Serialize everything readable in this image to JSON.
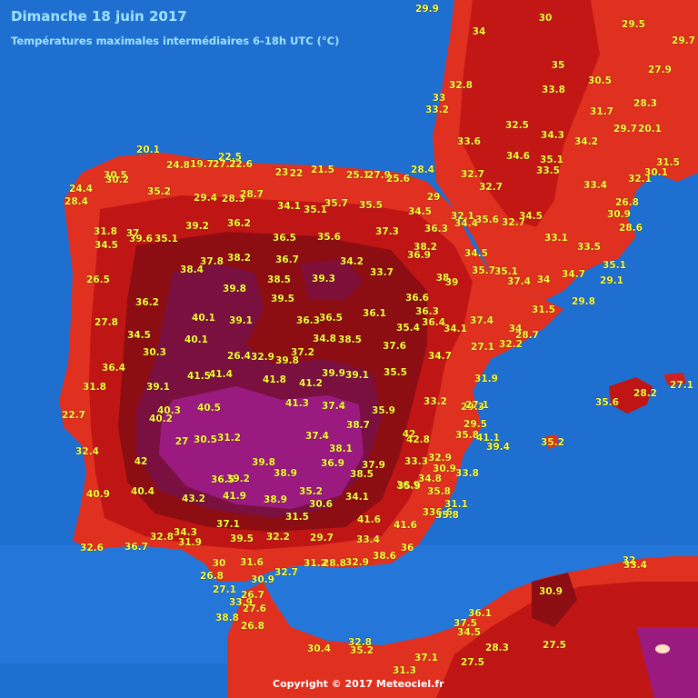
{
  "header": {
    "title": "Dimanche 18 juin 2017",
    "subtitle": "Températures maximales intermédiaires 6-18h UTC (°C)"
  },
  "footer": {
    "copyright": "Copyright © 2017 Meteociel.fr"
  },
  "colors": {
    "sea": "#1f6fd1",
    "sea_light": "#2f86e6",
    "land_warm": "#e03020",
    "land_hot": "#c01515",
    "land_very_hot": "#8c0d12",
    "land_extreme": "#7a1040",
    "land_max": "#9a1a80",
    "label": "#ffff3c"
  },
  "labels": [
    "29.9",
    "34",
    "30",
    "29.5",
    "29.7",
    "20.1",
    "22.5",
    "24.8",
    "19.7",
    "27.7",
    "22.6",
    "23",
    "22",
    "21.5",
    "25.1",
    "27.9",
    "25.6",
    "28.4",
    "30.5",
    "30.2",
    "24.4",
    "28.4",
    "35.2",
    "29.4",
    "28.3",
    "28.7",
    "34.1",
    "35.1",
    "35.7",
    "35.5",
    "33",
    "32.8",
    "33.2",
    "33.6",
    "35",
    "33.8",
    "30.5",
    "27.9",
    "32.5",
    "34.6",
    "34.3",
    "34.2",
    "31.7",
    "28.3",
    "29.7",
    "20.1",
    "35.1",
    "33.5",
    "32.7",
    "32.7",
    "33.4",
    "32.1",
    "30.1",
    "31.5",
    "30.9",
    "26.8",
    "28.6",
    "31.8",
    "37",
    "34.5",
    "39.6",
    "35.1",
    "39.2",
    "36.2",
    "36.5",
    "35.6",
    "37.3",
    "29",
    "34.5",
    "36.3",
    "32.1",
    "34.4",
    "35.6",
    "32.7",
    "34.5",
    "33.1",
    "33.5",
    "37.8",
    "38.2",
    "36.7",
    "34.2",
    "33.7",
    "38.2",
    "36.9",
    "34.5",
    "35.7",
    "35.1",
    "34.7",
    "35.1",
    "26.5",
    "38.4",
    "38.5",
    "39.3",
    "38",
    "39",
    "37.4",
    "34",
    "29.1",
    "36.2",
    "39.8",
    "39.5",
    "36.6",
    "36.3",
    "36.1",
    "31.5",
    "29.8",
    "40.1",
    "39.1",
    "36.5",
    "35.4",
    "36.4",
    "34.1",
    "37.4",
    "34",
    "27.8",
    "34.5",
    "36.3",
    "34.8",
    "38.5",
    "37.6",
    "32.2",
    "28.7",
    "40.1",
    "30.3",
    "26.4",
    "32.9",
    "37.2",
    "39.8",
    "34.7",
    "27.1",
    "36.4",
    "41.5",
    "41.4",
    "41.8",
    "41.2",
    "39.9",
    "39.1",
    "35.5",
    "31.9",
    "31.8",
    "39.1",
    "40.5",
    "41.3",
    "37.4",
    "33.2",
    "29.3",
    "27.1",
    "22.7",
    "40.3",
    "40.2",
    "35.9",
    "38.7",
    "29.5",
    "35.8",
    "42",
    "42.8",
    "41.1",
    "39.4",
    "35.2",
    "32.4",
    "27",
    "30.5",
    "31.2",
    "37.4",
    "38.1",
    "33.3",
    "32.9",
    "30.9",
    "33.8",
    "42",
    "39.8",
    "38.9",
    "36.9",
    "37.9",
    "38.5",
    "34.8",
    "36.9",
    "35.8",
    "35.9",
    "33",
    "40.9",
    "40.4",
    "39.2",
    "36.5",
    "43.2",
    "41.9",
    "38.9",
    "35.2",
    "30.6",
    "34.1",
    "31.1",
    "36.6",
    "35.8",
    "31.5",
    "41.6",
    "41.6",
    "37.1",
    "39.5",
    "32.2",
    "29.7",
    "33.4",
    "36",
    "32.8",
    "34.3",
    "31.9",
    "32.6",
    "36.7",
    "38.6",
    "30",
    "31.6",
    "30.9",
    "31.2",
    "28.8",
    "32.9",
    "32.7",
    "26.8",
    "27.1",
    "26.7",
    "33.9",
    "27.6",
    "38.8",
    "26.8",
    "30.9",
    "36.1",
    "37.5",
    "34.5",
    "28.3",
    "27.5",
    "30.4",
    "32.8",
    "35.2",
    "37.1",
    "27.5",
    "31.3",
    "32",
    "33.4",
    "27.1",
    "35.6",
    "28.2"
  ]
}
